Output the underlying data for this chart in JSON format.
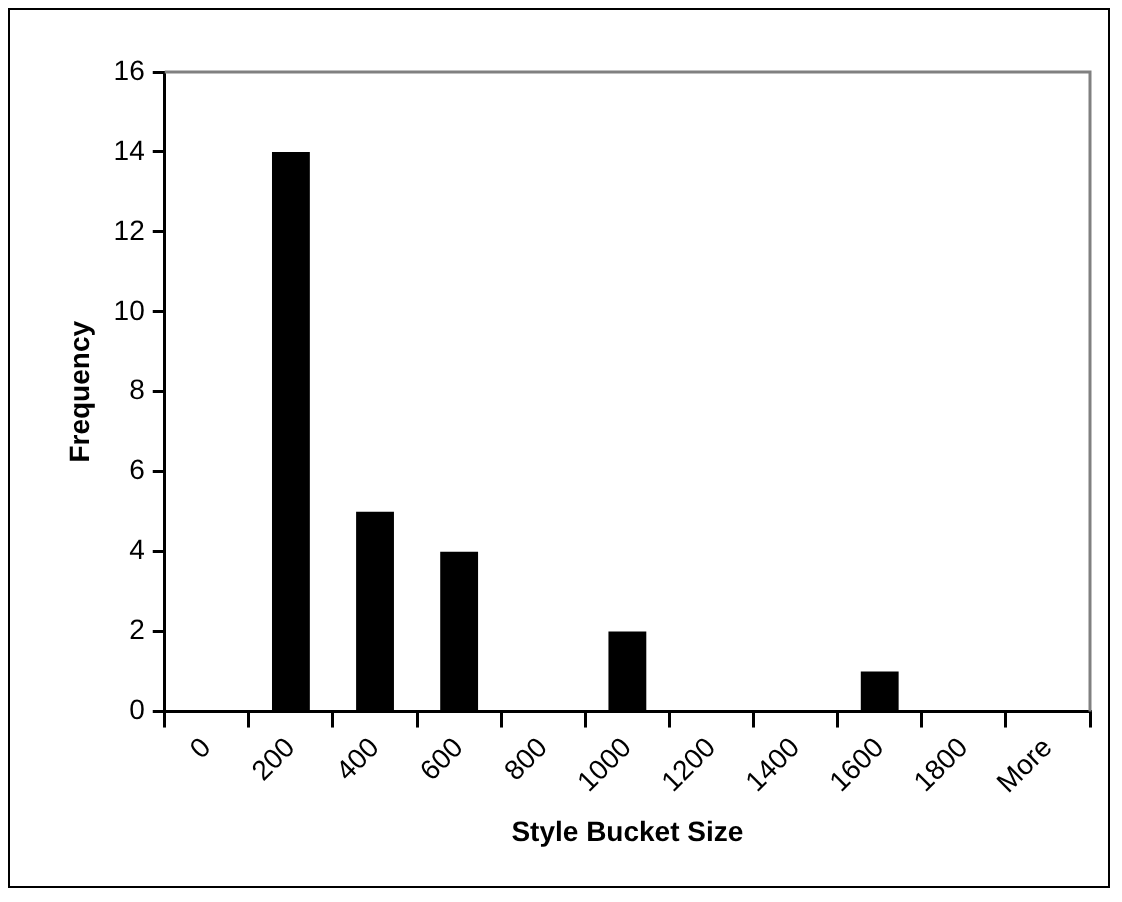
{
  "chart_data": {
    "type": "bar",
    "xlabel": "Style Bucket Size",
    "ylabel": "Frequency",
    "categories": [
      "0",
      "200",
      "400",
      "600",
      "800",
      "1000",
      "1200",
      "1400",
      "1600",
      "1800",
      "More"
    ],
    "values": [
      0,
      14,
      5,
      4,
      0,
      2,
      0,
      0,
      1,
      0,
      0
    ],
    "color": "#000000",
    "ylim": [
      0,
      16
    ],
    "yticks": [
      0,
      2,
      4,
      6,
      8,
      10,
      12,
      14,
      16
    ],
    "grid": false,
    "legend": false
  }
}
